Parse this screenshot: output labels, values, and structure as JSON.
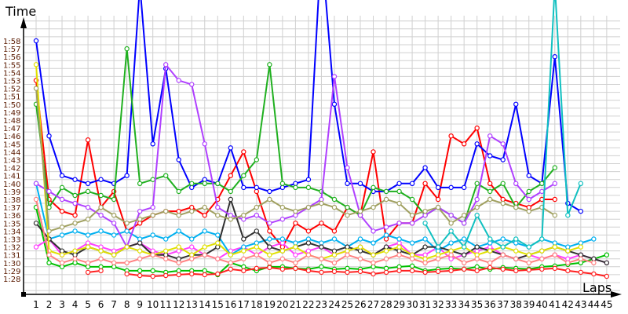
{
  "chart_data": {
    "type": "line",
    "title": "",
    "xlabel": "Laps",
    "ylabel": "Time",
    "xlim": [
      1,
      45
    ],
    "ylim": [
      88,
      118
    ],
    "grid": true,
    "legend": "none",
    "x": [
      1,
      2,
      3,
      4,
      5,
      6,
      7,
      8,
      9,
      10,
      11,
      12,
      13,
      14,
      15,
      16,
      17,
      18,
      19,
      20,
      21,
      22,
      23,
      24,
      25,
      26,
      27,
      28,
      29,
      30,
      31,
      32,
      33,
      34,
      35,
      36,
      37,
      38,
      39,
      40,
      41,
      42,
      43,
      44,
      45
    ],
    "y_tick_labels": [
      "1:28",
      "1:29",
      "1:30",
      "1:31",
      "1:32",
      "1:33",
      "1:34",
      "1:35",
      "1:36",
      "1:37",
      "1:38",
      "1:39",
      "1:40",
      "1:41",
      "1:42",
      "1:43",
      "1:44",
      "1:45",
      "1:46",
      "1:47",
      "1:48",
      "1:49",
      "1:50",
      "1:51",
      "1:52",
      "1:53",
      "1:54",
      "1:55",
      "1:56",
      "1:57",
      "1:58"
    ],
    "x_tick_labels": [
      "1",
      "2",
      "3",
      "4",
      "5",
      "6",
      "7",
      "8",
      "9",
      "10",
      "11",
      "12",
      "13",
      "14",
      "15",
      "16",
      "17",
      "18",
      "19",
      "20",
      "21",
      "22",
      "23",
      "24",
      "25",
      "26",
      "27",
      "28",
      "29",
      "30",
      "31",
      "32",
      "33",
      "34",
      "35",
      "36",
      "37",
      "38",
      "39",
      "40",
      "41",
      "42",
      "43",
      "44",
      "45"
    ],
    "series": [
      {
        "color": "#ff0000",
        "values": [
          113,
          98,
          96.5,
          96,
          105.5,
          97,
          99,
          94,
          95,
          96,
          96.5,
          96.5,
          97,
          96,
          98,
          101,
          104,
          99,
          94,
          92,
          95,
          94,
          95,
          94,
          97,
          96,
          104,
          93,
          95,
          95,
          100,
          98,
          106,
          105,
          107,
          100,
          98,
          97.5,
          97,
          98,
          98,
          null,
          null,
          null,
          null
        ]
      },
      {
        "color": "#0000ff",
        "values": [
          118,
          106,
          101,
          100.5,
          100,
          100.5,
          100,
          101,
          125,
          105,
          114.5,
          103,
          99.5,
          100.5,
          100,
          104.5,
          99.5,
          99.5,
          99,
          99.5,
          100,
          100.5,
          130,
          110,
          100,
          100,
          99,
          99,
          100,
          100,
          102,
          99.5,
          99.5,
          99.5,
          105,
          103.5,
          103,
          110,
          101,
          100,
          116,
          97.5,
          96.5,
          null,
          null
        ]
      },
      {
        "color": "#00c000",
        "values": [
          97,
          90,
          89.5,
          90,
          89.5,
          89.5,
          89.5,
          89,
          89,
          89,
          88.8,
          89,
          89,
          89,
          88.5,
          90,
          89.5,
          89,
          89.5,
          89.5,
          89.3,
          89.2,
          89.5,
          89.2,
          89.3,
          89.2,
          89.5,
          89.3,
          89.5,
          89.6,
          89,
          89.2,
          89.3,
          89.2,
          89.5,
          89.2,
          89.4,
          89.3,
          89.2,
          89.5,
          89.6,
          89.8,
          90,
          90.5,
          91
        ]
      },
      {
        "color": "#ff2020",
        "values": [
          null,
          null,
          null,
          null,
          88.8,
          89,
          null,
          88.6,
          88.4,
          88.3,
          88.4,
          88.5,
          88.6,
          88.5,
          88.6,
          89.2,
          89,
          89.3,
          89.4,
          89.2,
          89.3,
          89,
          88.8,
          88.9,
          88.8,
          88.9,
          88.6,
          88.8,
          89,
          89,
          88.8,
          88.9,
          89,
          89.2,
          89,
          89.4,
          89.2,
          89,
          89.1,
          89.2,
          89.3,
          89,
          88.8,
          88.6,
          88.3
        ]
      },
      {
        "color": "#20b020",
        "values": [
          110,
          97,
          99.5,
          98.5,
          99,
          98.5,
          98,
          117,
          100,
          100.5,
          101,
          99,
          100,
          100,
          100,
          99,
          101,
          103,
          115,
          100,
          99.5,
          99.5,
          99,
          98,
          97,
          96,
          99.5,
          99,
          99,
          98,
          96,
          97,
          96,
          95,
          100,
          99,
          100,
          97,
          99,
          100,
          102,
          null,
          null,
          null,
          null
        ]
      },
      {
        "color": "#ff40ff",
        "values": [
          92,
          93,
          91,
          91.5,
          92.5,
          92,
          91.5,
          92,
          92.5,
          91.5,
          91,
          91.5,
          92,
          91,
          90.5,
          91.5,
          92,
          91,
          92,
          92.5,
          91,
          91.5,
          92,
          91,
          91.5,
          92,
          91,
          92,
          92.5,
          91,
          91,
          92,
          90.5,
          91,
          91.5,
          92,
          91,
          90.5,
          91,
          90.5,
          91,
          90.5,
          91,
          90.5,
          90
        ]
      },
      {
        "color": "#00b0f0",
        "values": [
          100,
          93,
          93.5,
          94,
          93.5,
          94,
          93.5,
          94,
          93,
          93.5,
          93,
          94,
          93,
          94,
          93.5,
          91,
          92,
          92.5,
          93,
          93,
          92.5,
          93,
          92.5,
          93,
          92,
          93,
          92.5,
          93.5,
          93,
          92.5,
          93,
          91.5,
          92.5,
          93,
          92,
          92.5,
          93,
          92.5,
          92,
          93,
          92.5,
          92,
          92.5,
          93,
          null
        ]
      },
      {
        "color": "#303030",
        "values": [
          95,
          93,
          91.5,
          91,
          92,
          91.5,
          91,
          92,
          92.5,
          91,
          91,
          90.5,
          91,
          91,
          92,
          98,
          93,
          94,
          92,
          91.5,
          92,
          92.5,
          92,
          91.5,
          92,
          91.5,
          91,
          92,
          91.5,
          91,
          92,
          92,
          91.5,
          91,
          92,
          91.5,
          91,
          90.5,
          91,
          91.5,
          92,
          91.5,
          91,
          90.5,
          90
        ]
      },
      {
        "color": "#b040ff",
        "values": [
          100,
          99,
          98,
          97.5,
          97,
          96,
          95,
          92,
          96.5,
          97,
          115,
          113,
          112.5,
          105,
          97,
          96,
          95.5,
          96,
          95,
          95.5,
          96,
          97,
          98,
          113.5,
          102,
          96,
          94,
          94.5,
          95,
          95,
          96,
          97,
          96,
          95,
          98,
          106,
          105,
          100,
          98,
          99,
          100,
          null,
          null,
          null,
          null
        ]
      },
      {
        "color": "#e0e000",
        "values": [
          115,
          91.5,
          91,
          91.5,
          92,
          91.5,
          91,
          92,
          91.5,
          91,
          91.5,
          92,
          91,
          92,
          92.5,
          91,
          91.5,
          92,
          91,
          91.5,
          92,
          91,
          90.5,
          91,
          91.5,
          92,
          91,
          91.5,
          92,
          91,
          90.5,
          91,
          91.5,
          92,
          91,
          91.5,
          92,
          91.5,
          91,
          91.5,
          92,
          91.5,
          92,
          null,
          null
        ]
      },
      {
        "color": "#a0a060",
        "values": [
          112,
          94,
          94.5,
          95,
          95.5,
          97,
          96,
          95,
          95.5,
          96,
          96.5,
          96,
          96.5,
          97,
          96,
          95.5,
          96,
          97,
          98,
          97,
          96.5,
          97,
          97.5,
          97,
          96,
          96.5,
          97,
          98,
          97.5,
          96,
          96.5,
          97,
          95,
          96,
          97,
          98,
          97.5,
          97,
          96.5,
          97,
          96,
          null,
          null,
          null,
          null
        ]
      },
      {
        "color": "#ff8080",
        "values": [
          98,
          91,
          90,
          90.5,
          90,
          90.5,
          90,
          90,
          90.5,
          91,
          90.5,
          90,
          90.5,
          91,
          90.5,
          90,
          90.5,
          91,
          90,
          90.5,
          90,
          91,
          90.5,
          90,
          91,
          90.5,
          90,
          90.5,
          91,
          90.5,
          90,
          90.5,
          91,
          90,
          90.5,
          90,
          91,
          90.5,
          90,
          90.5,
          91,
          90,
          90.5,
          90,
          null
        ]
      },
      {
        "color": "#10c0c0",
        "values": [
          null,
          null,
          null,
          null,
          null,
          null,
          null,
          null,
          null,
          null,
          null,
          null,
          null,
          null,
          null,
          null,
          null,
          null,
          null,
          null,
          null,
          null,
          null,
          null,
          null,
          null,
          null,
          null,
          null,
          null,
          95,
          92,
          94,
          92,
          96,
          93,
          92,
          93,
          92,
          93,
          125,
          96,
          100,
          null,
          null
        ]
      }
    ]
  }
}
